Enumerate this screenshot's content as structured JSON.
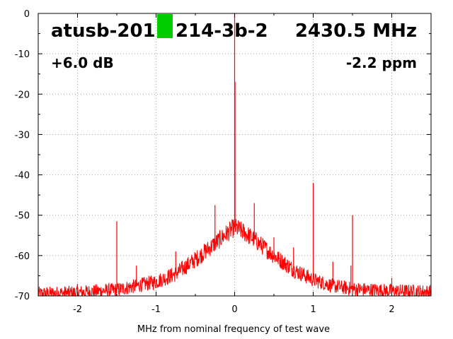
{
  "header": {
    "device": "atusb-2011",
    "device_suffix": "214-3b-2",
    "frequency": "2430.5 MHz",
    "gain": "+6.0 dB",
    "ppm": "-2.2 ppm",
    "status_color": "#00cc00"
  },
  "chart_data": {
    "type": "line",
    "xlabel": "MHz from nominal frequency of test wave",
    "ylabel": "",
    "xlim": [
      -2.5,
      2.5
    ],
    "ylim": [
      -70,
      0
    ],
    "xticks": [
      -2,
      -1,
      0,
      1,
      2
    ],
    "yticks": [
      0,
      -10,
      -20,
      -30,
      -40,
      -50,
      -60,
      -70
    ],
    "grid": true,
    "series": [
      {
        "color": "#ff0000",
        "noise_floor": [
          [
            -2.5,
            -69.5
          ],
          [
            -2.0,
            -69.2
          ],
          [
            -1.5,
            -68.5
          ],
          [
            -1.0,
            -66.5
          ],
          [
            -0.75,
            -64.5
          ],
          [
            -0.5,
            -61.0
          ],
          [
            -0.25,
            -57.0
          ],
          [
            -0.1,
            -54.5
          ],
          [
            0.0,
            -53.0
          ],
          [
            0.1,
            -54.0
          ],
          [
            0.25,
            -56.0
          ],
          [
            0.5,
            -60.0
          ],
          [
            0.75,
            -63.5
          ],
          [
            1.0,
            -66.0
          ],
          [
            1.25,
            -67.5
          ],
          [
            1.5,
            -68.3
          ],
          [
            2.0,
            -68.8
          ],
          [
            2.5,
            -69.0
          ]
        ],
        "spurs": [
          [
            0.0,
            0.0
          ],
          [
            0.005,
            -17.0
          ],
          [
            1.0,
            -42.0
          ],
          [
            1.5,
            -50.0
          ],
          [
            -1.5,
            -51.5
          ],
          [
            -0.25,
            -47.5
          ],
          [
            0.25,
            -47.0
          ],
          [
            0.5,
            -55.5
          ],
          [
            -0.75,
            -59.0
          ],
          [
            0.75,
            -58.0
          ],
          [
            -1.25,
            -62.5
          ],
          [
            1.25,
            -61.5
          ],
          [
            1.48,
            -62.5
          ],
          [
            2.0,
            -65.5
          ],
          [
            -2.0,
            -67.0
          ]
        ]
      }
    ]
  }
}
